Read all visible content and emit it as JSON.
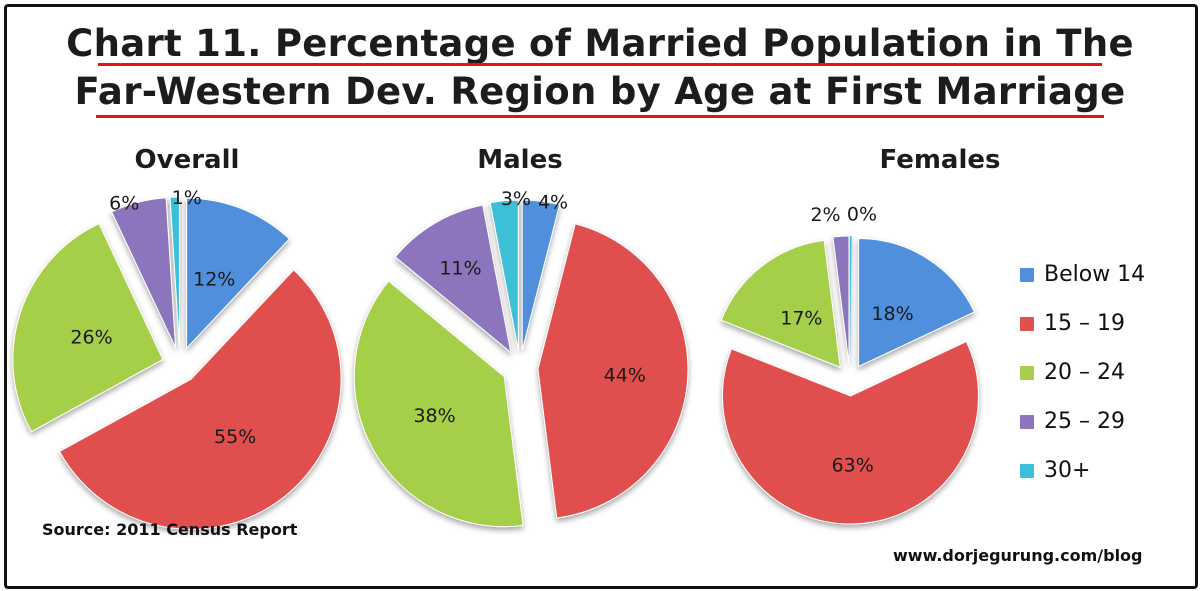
{
  "title_line1": "Chart 11. Percentage of Married Population in The",
  "title_line2": "Far-Western Dev. Region by Age at First Marriage",
  "source": "Source: 2011 Census Report",
  "website": "www.dorjegurung.com/blog",
  "colors": {
    "title_underline": "#e11111",
    "below14": "#4f8fdc",
    "15-19": "#e0504d",
    "20-24": "#a6cf4a",
    "25-29": "#8d74bd",
    "30plus": "#3cbfd8"
  },
  "chart_data": [
    {
      "type": "pie",
      "title": "Overall",
      "categories": [
        "Below 14",
        "15 – 19",
        "20 – 24",
        "25 – 29",
        "30+"
      ],
      "values": [
        12,
        55,
        26,
        6,
        1
      ],
      "labels": [
        "12%",
        "55%",
        "26%",
        "6%",
        "1%"
      ],
      "exploded": true
    },
    {
      "type": "pie",
      "title": "Males",
      "categories": [
        "Below 14",
        "15 – 19",
        "20 – 24",
        "25 – 29",
        "30+"
      ],
      "values": [
        4,
        44,
        38,
        11,
        3
      ],
      "labels": [
        "4%",
        "44%",
        "38%",
        "11%",
        "3%"
      ],
      "exploded": true
    },
    {
      "type": "pie",
      "title": "Females",
      "categories": [
        "Below 14",
        "15 – 19",
        "20 – 24",
        "25 – 29",
        "30+"
      ],
      "values": [
        18,
        63,
        17,
        2,
        0
      ],
      "labels": [
        "18%",
        "63%",
        "17%",
        "2%",
        "0%"
      ],
      "exploded": true,
      "legend": "right"
    }
  ]
}
